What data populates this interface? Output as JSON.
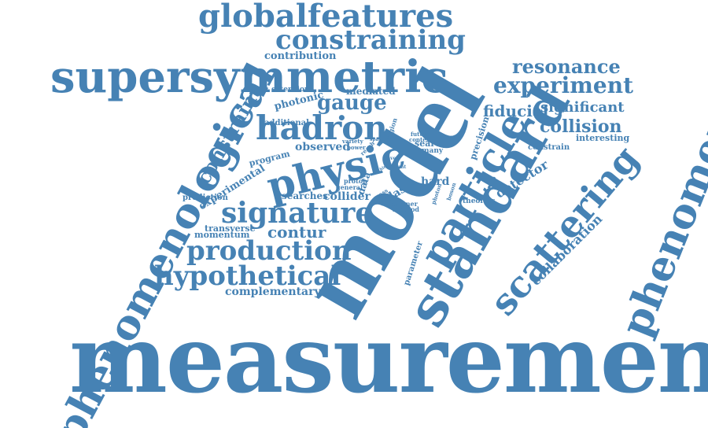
{
  "color": "#4682b4",
  "words": {
    "measurement": "measurement",
    "model": "model",
    "standard": "standard",
    "phenomenology": "phenomenology",
    "phenomenological": "phenomenological",
    "supersymmetric": "supersymmetric",
    "particle": "particle",
    "scattering": "scattering",
    "physic": "physic",
    "globalfeatures": "globalfeatures",
    "constraining": "constraining",
    "signature": "signature",
    "production": "production",
    "hypothetical": "hypothetical",
    "hadron": "hadron",
    "experiment": "experiment",
    "resonance": "resonance",
    "collision": "collision",
    "fiducial": "fiducial",
    "significant": "significant",
    "gauge": "gauge",
    "contur": "contur",
    "constraint": "constraint",
    "contribution": "contribution",
    "photonic": "photonic",
    "mediated": "mediated",
    "extension": "extension",
    "additional": "additional",
    "observed": "observed",
    "program": "program",
    "experimental": "experimental",
    "prediction": "prediction",
    "searches": "searches",
    "collider": "collider",
    "transverse": "transverse",
    "momentum": "momentum",
    "complementary": "complementary",
    "collaboration": "collaboration",
    "detector": "detector",
    "constrain": "constrain",
    "interesting": "interesting",
    "theories": "theories",
    "precision": "precision",
    "hard": "hard",
    "atlas": "atlas",
    "search": "search",
    "many": "many",
    "data": "data",
    "general": "general",
    "proton": "proton",
    "parameter": "parameter",
    "partner": "partner",
    "method": "method",
    "photon": "photon",
    "boson": "boson",
    "mass": "mass",
    "variety": "variety",
    "power": "power",
    "space": "space",
    "region": "region",
    "future": "future",
    "context": "context",
    "reach": "reach",
    "level": "level",
    "event": "event",
    "within": "within",
    "dot": "•"
  }
}
